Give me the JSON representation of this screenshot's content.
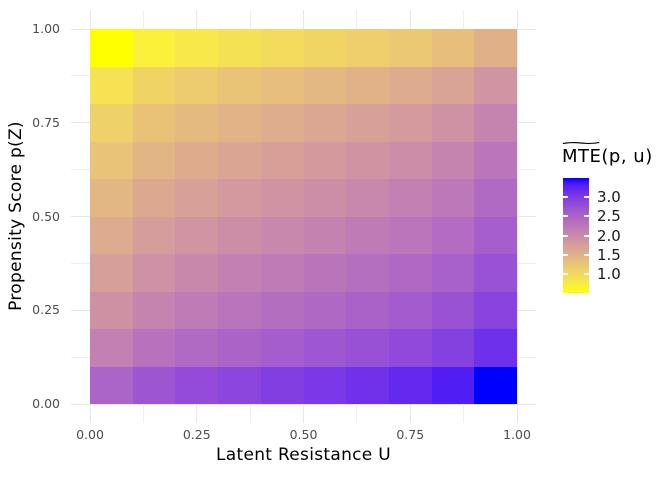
{
  "axes": {
    "x": {
      "title": "Latent Resistance U",
      "tick_labels": [
        "0.00",
        "0.25",
        "0.50",
        "0.75",
        "1.00"
      ],
      "tick_values": [
        0,
        0.25,
        0.5,
        0.75,
        1.0
      ],
      "minor_values": [
        0.125,
        0.375,
        0.625,
        0.875
      ]
    },
    "y": {
      "title": "Propensity Score p(Z)",
      "tick_labels": [
        "0.00",
        "0.25",
        "0.50",
        "0.75",
        "1.00"
      ],
      "tick_values": [
        0,
        0.25,
        0.5,
        0.75,
        1.0
      ],
      "minor_values": [
        0.125,
        0.375,
        0.625,
        0.875
      ]
    }
  },
  "legend": {
    "title_tilde_over": "MTE",
    "tilde_glyph": "~",
    "title_rest": "(p, u)",
    "tick_labels": [
      "3.0",
      "2.5",
      "2.0",
      "1.5",
      "1.0"
    ],
    "tick_values": [
      3.0,
      2.5,
      2.0,
      1.5,
      1.0
    ]
  },
  "colors": {
    "background": "#FFFFFF",
    "axis_text": "#4D4D4D",
    "axis_title": "#000000",
    "legend_text": "#1A1A1A",
    "grid_major": "#E8E8E8",
    "grid_minor": "#EFEFEF",
    "gradient_low": "#FFFF00",
    "gradient_high": "#0000FF"
  },
  "chart_data": {
    "type": "heatmap",
    "title": "",
    "xlabel": "Latent Resistance U",
    "ylabel": "Propensity Score p(Z)",
    "legend_title": "MTE(p, u) with tilde over MTE",
    "legend_position": "right",
    "x_range": [
      0,
      1
    ],
    "y_range": [
      0,
      1
    ],
    "u_tile_centers": [
      0.05,
      0.15,
      0.25,
      0.35,
      0.45,
      0.55,
      0.65,
      0.75,
      0.85,
      0.95
    ],
    "p_tile_centers_top_to_bottom": [
      0.95,
      0.85,
      0.75,
      0.65,
      0.55,
      0.45,
      0.35,
      0.25,
      0.15,
      0.05
    ],
    "values_rows_top_to_bottom": [
      [
        0.52,
        0.702,
        0.811,
        0.897,
        0.975,
        1.051,
        1.129,
        1.215,
        1.324,
        1.507
      ],
      [
        0.885,
        1.067,
        1.176,
        1.263,
        1.34,
        1.416,
        1.494,
        1.58,
        1.689,
        1.872
      ],
      [
        1.102,
        1.284,
        1.393,
        1.48,
        1.558,
        1.633,
        1.711,
        1.798,
        1.906,
        2.089
      ],
      [
        1.275,
        1.458,
        1.566,
        1.653,
        1.731,
        1.807,
        1.884,
        1.971,
        2.08,
        2.262
      ],
      [
        1.431,
        1.614,
        1.722,
        1.809,
        1.887,
        1.962,
        2.04,
        2.127,
        2.236,
        2.418
      ],
      [
        1.582,
        1.764,
        1.873,
        1.96,
        2.038,
        2.113,
        2.191,
        2.278,
        2.386,
        2.569
      ],
      [
        1.738,
        1.92,
        2.029,
        2.116,
        2.193,
        2.269,
        2.347,
        2.433,
        2.542,
        2.725
      ],
      [
        1.911,
        2.094,
        2.202,
        2.289,
        2.367,
        2.442,
        2.52,
        2.607,
        2.716,
        2.898
      ],
      [
        2.128,
        2.311,
        2.419,
        2.506,
        2.584,
        2.66,
        2.737,
        2.824,
        2.933,
        3.115
      ],
      [
        2.493,
        2.676,
        2.785,
        2.871,
        2.949,
        3.025,
        3.102,
        3.189,
        3.298,
        3.48
      ]
    ],
    "fill": {
      "low": "#FFFF00",
      "high": "#0000FF",
      "space": "lab",
      "limits": [
        0.52,
        3.48
      ],
      "breaks": [
        1.0,
        1.5,
        2.0,
        2.5,
        3.0
      ]
    },
    "grid": true
  }
}
